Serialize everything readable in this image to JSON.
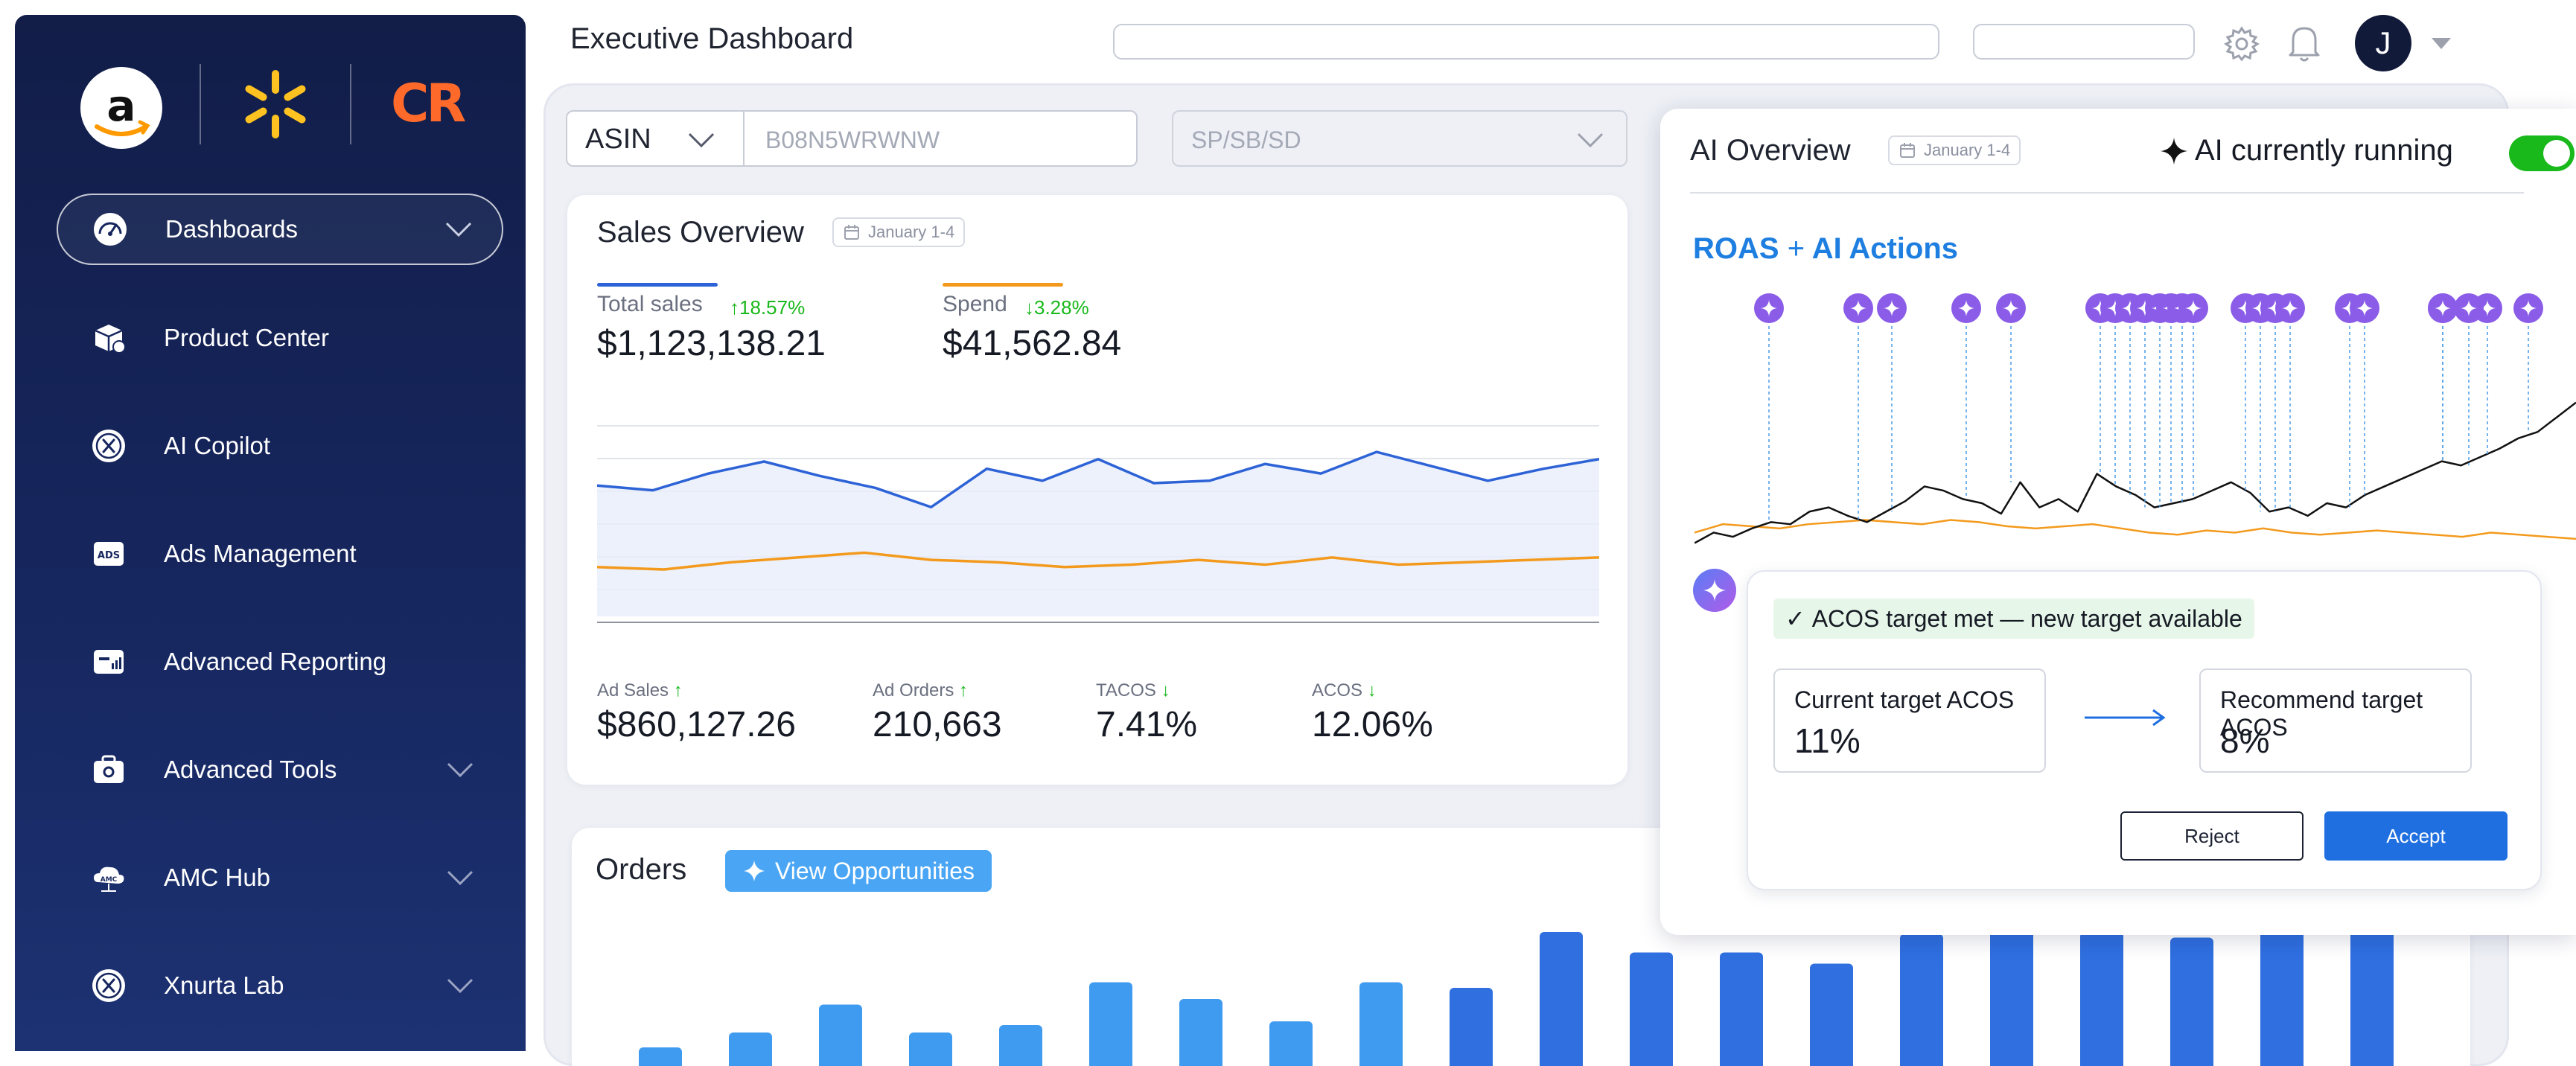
{
  "sidebar": {
    "brand_logos": [
      "amazon-logo",
      "walmart-logo",
      "cr-logo"
    ],
    "cr_logo_text": "CR",
    "items": [
      {
        "label": "Dashboards",
        "icon": "gauge-icon",
        "active": true,
        "expandable": true
      },
      {
        "label": "Product Center",
        "icon": "box-icon",
        "active": false,
        "expandable": false
      },
      {
        "label": "AI Copilot",
        "icon": "copilot-icon",
        "active": false,
        "expandable": false
      },
      {
        "label": "Ads Management",
        "icon": "ads-icon",
        "active": false,
        "expandable": false
      },
      {
        "label": "Advanced Reporting",
        "icon": "report-icon",
        "active": false,
        "expandable": false
      },
      {
        "label": "Advanced Tools",
        "icon": "toolbox-icon",
        "active": false,
        "expandable": true
      },
      {
        "label": "AMC Hub",
        "icon": "amc-icon",
        "active": false,
        "expandable": true
      },
      {
        "label": "Xnurta Lab",
        "icon": "lab-icon",
        "active": false,
        "expandable": true
      }
    ]
  },
  "header": {
    "title": "Executive Dashboard",
    "avatar_initial": "J"
  },
  "filters": {
    "asin_label": "ASIN",
    "asin_value": "B08N5WRWNW",
    "ad_type": "SP/SB/SD"
  },
  "sales_overview": {
    "title": "Sales Overview",
    "date": "January 1-4",
    "total_sales": {
      "label": "Total sales",
      "value": "$1,123,138.21",
      "delta": "18.57%",
      "direction": "up"
    },
    "spend": {
      "label": "Spend",
      "value": "$41,562.84",
      "delta": "3.28%",
      "direction": "down"
    },
    "ad_sales": {
      "label": "Ad Sales",
      "value": "$860,127.26",
      "direction": "up"
    },
    "ad_orders": {
      "label": "Ad Orders",
      "value": "210,663",
      "direction": "up"
    },
    "tacos": {
      "label": "TACOS",
      "value": "7.41%",
      "direction": "down"
    },
    "acos": {
      "label": "ACOS",
      "value": "12.06%",
      "direction": "down"
    }
  },
  "orders": {
    "title": "Orders",
    "button_label": "View Opportunities"
  },
  "ai_overview": {
    "title": "AI Overview",
    "date": "January 1-4",
    "status": "AI currently running",
    "toggle_on": true,
    "chart_title_a": "ROAS",
    "chart_title_plus": "+",
    "chart_title_b": "AI Actions"
  },
  "recommendation": {
    "badge": "ACOS target met — new target available",
    "current_label": "Current target ACOS",
    "current_value": "11%",
    "recommend_label": "Recommend target ACOS",
    "recommend_value": "8%",
    "reject_label": "Reject",
    "accept_label": "Accept"
  },
  "colors": {
    "sidebar": "#16265e",
    "accent_blue": "#1f6fe0",
    "sales_line": "#2d63d6",
    "spend_line": "#f39a1d",
    "up": "#19b81b",
    "down": "#19b81b",
    "toggle": "#19b81b",
    "roas_title": "#1e7fe0"
  },
  "chart_data": [
    {
      "type": "line",
      "title": "Sales Overview",
      "series": [
        {
          "name": "Total sales",
          "values": [
            62,
            60,
            67,
            72,
            66,
            61,
            53,
            69,
            64,
            73,
            63,
            64,
            71,
            67,
            76,
            70,
            64,
            69,
            73
          ]
        },
        {
          "name": "Spend",
          "values": [
            28,
            27,
            30,
            32,
            34,
            31,
            30,
            28,
            29,
            31,
            29,
            32,
            29,
            30,
            31,
            32
          ]
        }
      ],
      "grid": true
    },
    {
      "type": "bar",
      "title": "Orders",
      "values": [
        10,
        18,
        33,
        18,
        22,
        45,
        36,
        24,
        45,
        42,
        72,
        61,
        61,
        55,
        71,
        76,
        72,
        69,
        73,
        77
      ]
    },
    {
      "type": "line",
      "title": "ROAS + AI Actions",
      "series": [
        {
          "name": "ROAS",
          "values": [
            45,
            50,
            48,
            52,
            55,
            54,
            60,
            62,
            58,
            55,
            60,
            65,
            72,
            70,
            66,
            64,
            59,
            74,
            62,
            66,
            60,
            78,
            72,
            68,
            62,
            64,
            66,
            70,
            74,
            69,
            60,
            62,
            58,
            64,
            62,
            68,
            72,
            76,
            80,
            84,
            82,
            86,
            90,
            95,
            98,
            105,
            112
          ]
        },
        {
          "name": "Baseline",
          "values": [
            50,
            54,
            53,
            52,
            54,
            55,
            56,
            55,
            54,
            56,
            55,
            53,
            52,
            53,
            54,
            52,
            50,
            49,
            51,
            50,
            52,
            50,
            49,
            50,
            51,
            50,
            49,
            48,
            50,
            49,
            48,
            47
          ]
        }
      ],
      "ai_action_markers": 24
    }
  ]
}
